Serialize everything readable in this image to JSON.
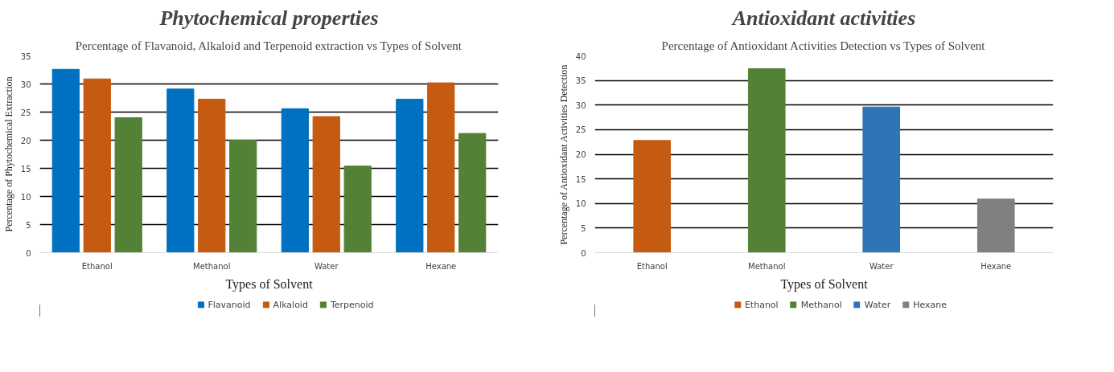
{
  "chart_data": [
    {
      "type": "bar",
      "title": "Phytochemical properties",
      "subtitle": "Percentage of Flavanoid, Alkaloid and Terpenoid extraction vs Types of Solvent",
      "xlabel": "Types of Solvent",
      "ylabel": "Percentage of Phytochemical Extraction",
      "categories": [
        "Ethanol",
        "Methanol",
        "Water",
        "Hexane"
      ],
      "series": [
        {
          "name": "Flavanoid",
          "color": "#0070c0",
          "values": [
            32.6,
            29.1,
            25.6,
            27.3
          ]
        },
        {
          "name": "Alkaloid",
          "color": "#c55a11",
          "values": [
            30.9,
            27.3,
            24.2,
            30.2
          ]
        },
        {
          "name": "Terpenoid",
          "color": "#538135",
          "values": [
            24.0,
            20.0,
            15.4,
            21.2
          ]
        }
      ],
      "ylim": [
        0,
        35
      ],
      "yticks": [
        0,
        5,
        10,
        15,
        20,
        25,
        30,
        35
      ],
      "grid": "y",
      "legend": "bottom"
    },
    {
      "type": "bar",
      "title": "Antioxidant activities",
      "subtitle": "Percentage of Antioxidant Activities Detection vs Types of Solvent",
      "xlabel": "Types of Solvent",
      "ylabel": "Percentage of Antioxidant Activities Detection",
      "categories": [
        "Ethanol",
        "Methanol",
        "Water",
        "Hexane"
      ],
      "stacked": true,
      "series": [
        {
          "name": "Ethanol",
          "color": "#c55a11",
          "values": [
            22.8,
            null,
            null,
            null
          ]
        },
        {
          "name": "Methanol",
          "color": "#538135",
          "values": [
            null,
            37.4,
            null,
            null
          ]
        },
        {
          "name": "Water",
          "color": "#2e75b6",
          "values": [
            null,
            null,
            29.6,
            null
          ]
        },
        {
          "name": "Hexane",
          "color": "#808080",
          "values": [
            null,
            null,
            null,
            10.9
          ]
        }
      ],
      "ylim": [
        0,
        40
      ],
      "yticks": [
        0,
        5,
        10,
        15,
        20,
        25,
        30,
        35,
        40
      ],
      "grid": "y",
      "legend": "bottom"
    }
  ]
}
